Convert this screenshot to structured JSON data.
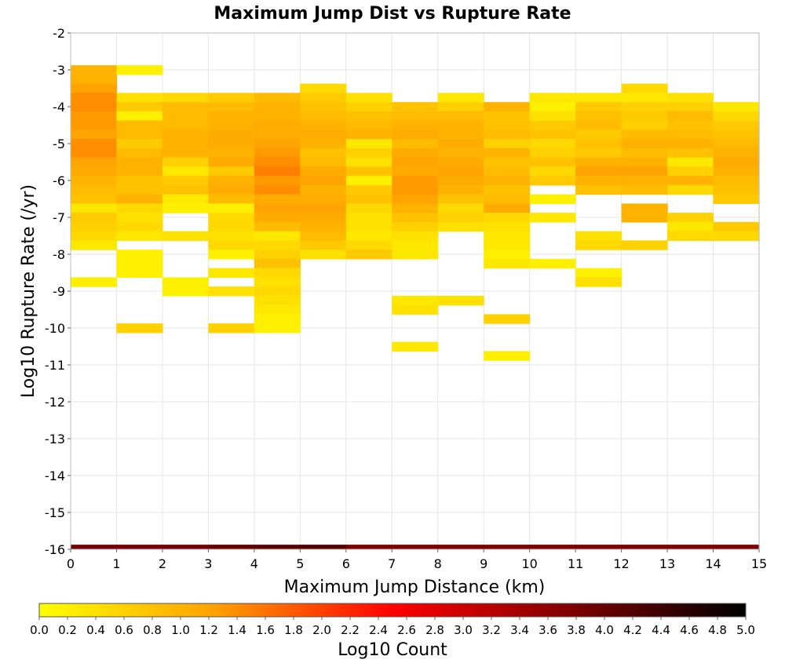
{
  "chart_data": {
    "type": "heatmap",
    "title": "Maximum Jump Dist vs Rupture Rate",
    "xlabel": "Maximum Jump Distance (km)",
    "ylabel": "Log10 Rupture Rate (/yr)",
    "xlim": [
      0,
      15
    ],
    "ylim": [
      -16,
      -2
    ],
    "x_ticks": [
      "0",
      "1",
      "2",
      "3",
      "4",
      "5",
      "6",
      "7",
      "8",
      "9",
      "10",
      "11",
      "12",
      "13",
      "14",
      "15"
    ],
    "y_ticks": [
      "-2",
      "-3",
      "-4",
      "-5",
      "-6",
      "-7",
      "-8",
      "-9",
      "-10",
      "-11",
      "-12",
      "-13",
      "-14",
      "-15",
      "-16"
    ],
    "grid": true,
    "x_bin_width": 1,
    "y_bin_height": 0.25,
    "colorbar": {
      "label": "Log10 Count",
      "range": [
        0,
        5
      ],
      "ticks": [
        "0.0",
        "0.2",
        "0.4",
        "0.6",
        "0.8",
        "1.0",
        "1.2",
        "1.4",
        "1.6",
        "1.8",
        "2.0",
        "2.2",
        "2.4",
        "2.6",
        "2.8",
        "3.0",
        "3.2",
        "3.4",
        "3.6",
        "3.8",
        "4.0",
        "4.2",
        "4.4",
        "4.6",
        "4.8",
        "5.0"
      ],
      "colors": [
        "#ffff00",
        "#ffa000",
        "#ff0000",
        "#800000",
        "#000000"
      ]
    },
    "columns": [
      {
        "x": 0,
        "bins": [
          [
            -3.0,
            1.0
          ],
          [
            -3.25,
            1.0
          ],
          [
            -3.5,
            1.2
          ],
          [
            -3.75,
            1.4
          ],
          [
            -4.0,
            1.4
          ],
          [
            -4.25,
            1.3
          ],
          [
            -4.5,
            1.3
          ],
          [
            -4.75,
            1.2
          ],
          [
            -5.0,
            1.4
          ],
          [
            -5.25,
            1.4
          ],
          [
            -5.5,
            1.2
          ],
          [
            -5.75,
            1.1
          ],
          [
            -6.0,
            1.0
          ],
          [
            -6.25,
            0.9
          ],
          [
            -6.5,
            0.8
          ],
          [
            -6.75,
            0.3
          ],
          [
            -7.0,
            0.7
          ],
          [
            -7.25,
            0.6
          ],
          [
            -7.5,
            0.5
          ],
          [
            -7.75,
            0.3
          ],
          [
            -8.75,
            0.2
          ]
        ]
      },
      {
        "x": 1,
        "bins": [
          [
            -3.0,
            0.2
          ],
          [
            -3.75,
            0.4
          ],
          [
            -4.0,
            0.7
          ],
          [
            -4.25,
            0.2
          ],
          [
            -4.5,
            0.9
          ],
          [
            -4.75,
            0.9
          ],
          [
            -5.0,
            0.7
          ],
          [
            -5.25,
            0.9
          ],
          [
            -5.5,
            1.0
          ],
          [
            -5.75,
            1.0
          ],
          [
            -6.0,
            0.8
          ],
          [
            -6.25,
            0.8
          ],
          [
            -6.5,
            1.0
          ],
          [
            -6.75,
            0.5
          ],
          [
            -7.0,
            0.4
          ],
          [
            -7.25,
            0.5
          ],
          [
            -7.5,
            0.3
          ],
          [
            -8.0,
            0.2
          ],
          [
            -8.25,
            0.2
          ],
          [
            -8.5,
            0.2
          ],
          [
            -10.0,
            0.6
          ]
        ]
      },
      {
        "x": 2,
        "bins": [
          [
            -3.75,
            0.5
          ],
          [
            -4.0,
            0.9
          ],
          [
            -4.25,
            0.9
          ],
          [
            -4.5,
            0.9
          ],
          [
            -4.75,
            1.0
          ],
          [
            -5.0,
            1.0
          ],
          [
            -5.25,
            1.0
          ],
          [
            -5.5,
            0.6
          ],
          [
            -5.75,
            0.3
          ],
          [
            -6.0,
            0.7
          ],
          [
            -6.25,
            0.8
          ],
          [
            -6.5,
            0.3
          ],
          [
            -6.75,
            0.2
          ],
          [
            -7.5,
            0.4
          ],
          [
            -8.75,
            0.2
          ],
          [
            -9.0,
            0.2
          ]
        ]
      },
      {
        "x": 3,
        "bins": [
          [
            -3.75,
            0.7
          ],
          [
            -4.0,
            0.9
          ],
          [
            -4.25,
            1.0
          ],
          [
            -4.5,
            1.0
          ],
          [
            -4.75,
            1.1
          ],
          [
            -5.0,
            1.1
          ],
          [
            -5.25,
            1.0
          ],
          [
            -5.5,
            1.1
          ],
          [
            -5.75,
            0.7
          ],
          [
            -6.0,
            1.0
          ],
          [
            -6.25,
            1.1
          ],
          [
            -6.5,
            0.9
          ],
          [
            -6.75,
            0.2
          ],
          [
            -7.0,
            0.5
          ],
          [
            -7.25,
            0.5
          ],
          [
            -7.5,
            0.4
          ],
          [
            -7.75,
            0.5
          ],
          [
            -8.0,
            0.2
          ],
          [
            -8.5,
            0.3
          ],
          [
            -9.0,
            0.4
          ],
          [
            -10.0,
            0.6
          ]
        ]
      },
      {
        "x": 4,
        "bins": [
          [
            -3.75,
            0.9
          ],
          [
            -4.0,
            1.0
          ],
          [
            -4.25,
            1.0
          ],
          [
            -4.5,
            1.1
          ],
          [
            -4.75,
            1.1
          ],
          [
            -5.0,
            1.2
          ],
          [
            -5.25,
            1.3
          ],
          [
            -5.5,
            1.4
          ],
          [
            -5.75,
            1.5
          ],
          [
            -6.0,
            1.3
          ],
          [
            -6.25,
            1.4
          ],
          [
            -6.5,
            1.1
          ],
          [
            -6.75,
            1.2
          ],
          [
            -7.0,
            1.1
          ],
          [
            -7.25,
            0.9
          ],
          [
            -7.5,
            0.3
          ],
          [
            -7.75,
            0.5
          ],
          [
            -8.0,
            0.6
          ],
          [
            -8.25,
            0.8
          ],
          [
            -8.5,
            0.5
          ],
          [
            -8.75,
            0.4
          ],
          [
            -9.0,
            0.5
          ],
          [
            -9.25,
            0.4
          ],
          [
            -9.5,
            0.3
          ],
          [
            -9.75,
            0.2
          ],
          [
            -10.0,
            0.2
          ]
        ]
      },
      {
        "x": 5,
        "bins": [
          [
            -3.5,
            0.5
          ],
          [
            -3.75,
            0.7
          ],
          [
            -4.0,
            0.8
          ],
          [
            -4.25,
            0.9
          ],
          [
            -4.5,
            1.0
          ],
          [
            -4.75,
            1.1
          ],
          [
            -5.0,
            1.0
          ],
          [
            -5.25,
            0.8
          ],
          [
            -5.5,
            0.9
          ],
          [
            -5.75,
            1.1
          ],
          [
            -6.0,
            1.2
          ],
          [
            -6.25,
            1.0
          ],
          [
            -6.5,
            1.1
          ],
          [
            -6.75,
            1.2
          ],
          [
            -7.0,
            1.1
          ],
          [
            -7.25,
            1.0
          ],
          [
            -7.5,
            0.9
          ],
          [
            -7.75,
            0.7
          ],
          [
            -8.0,
            0.4
          ]
        ]
      },
      {
        "x": 6,
        "bins": [
          [
            -3.75,
            0.4
          ],
          [
            -4.0,
            0.6
          ],
          [
            -4.25,
            0.8
          ],
          [
            -4.5,
            0.9
          ],
          [
            -4.75,
            1.0
          ],
          [
            -5.0,
            0.3
          ],
          [
            -5.25,
            0.6
          ],
          [
            -5.5,
            0.4
          ],
          [
            -5.75,
            0.8
          ],
          [
            -6.0,
            0.2
          ],
          [
            -6.25,
            0.7
          ],
          [
            -6.5,
            0.8
          ],
          [
            -6.75,
            0.5
          ],
          [
            -7.0,
            0.4
          ],
          [
            -7.25,
            0.4
          ],
          [
            -7.5,
            0.3
          ],
          [
            -7.75,
            0.5
          ],
          [
            -8.0,
            0.7
          ]
        ]
      },
      {
        "x": 7,
        "bins": [
          [
            -4.0,
            0.8
          ],
          [
            -4.25,
            0.9
          ],
          [
            -4.5,
            1.0
          ],
          [
            -4.75,
            1.1
          ],
          [
            -5.0,
            0.9
          ],
          [
            -5.25,
            1.1
          ],
          [
            -5.5,
            1.2
          ],
          [
            -5.75,
            1.1
          ],
          [
            -6.0,
            1.3
          ],
          [
            -6.25,
            1.3
          ],
          [
            -6.5,
            1.2
          ],
          [
            -6.75,
            1.0
          ],
          [
            -7.0,
            0.8
          ],
          [
            -7.25,
            0.6
          ],
          [
            -7.5,
            0.4
          ],
          [
            -7.75,
            0.3
          ],
          [
            -8.0,
            0.3
          ],
          [
            -9.25,
            0.3
          ],
          [
            -9.5,
            0.4
          ],
          [
            -10.5,
            0.3
          ]
        ]
      },
      {
        "x": 8,
        "bins": [
          [
            -3.75,
            0.3
          ],
          [
            -4.0,
            0.6
          ],
          [
            -4.25,
            0.9
          ],
          [
            -4.5,
            1.0
          ],
          [
            -4.75,
            1.0
          ],
          [
            -5.0,
            1.1
          ],
          [
            -5.25,
            1.0
          ],
          [
            -5.5,
            1.1
          ],
          [
            -5.75,
            1.2
          ],
          [
            -6.0,
            1.1
          ],
          [
            -6.25,
            1.0
          ],
          [
            -6.5,
            0.8
          ],
          [
            -6.75,
            0.5
          ],
          [
            -7.0,
            0.6
          ],
          [
            -7.25,
            0.4
          ],
          [
            -9.25,
            0.4
          ]
        ]
      },
      {
        "x": 9,
        "bins": [
          [
            -4.0,
            1.0
          ],
          [
            -4.25,
            0.8
          ],
          [
            -4.5,
            0.8
          ],
          [
            -4.75,
            0.9
          ],
          [
            -5.0,
            0.6
          ],
          [
            -5.25,
            1.0
          ],
          [
            -5.5,
            0.8
          ],
          [
            -5.75,
            0.9
          ],
          [
            -6.0,
            1.0
          ],
          [
            -6.25,
            0.8
          ],
          [
            -6.5,
            0.9
          ],
          [
            -6.75,
            1.1
          ],
          [
            -7.0,
            0.5
          ],
          [
            -7.25,
            0.4
          ],
          [
            -7.5,
            0.3
          ],
          [
            -7.75,
            0.3
          ],
          [
            -8.0,
            0.2
          ],
          [
            -8.25,
            0.3
          ],
          [
            -9.75,
            0.6
          ],
          [
            -10.75,
            0.2
          ]
        ]
      },
      {
        "x": 10,
        "bins": [
          [
            -3.75,
            0.3
          ],
          [
            -4.0,
            0.2
          ],
          [
            -4.25,
            0.4
          ],
          [
            -4.5,
            0.7
          ],
          [
            -4.75,
            0.8
          ],
          [
            -5.0,
            0.5
          ],
          [
            -5.25,
            0.6
          ],
          [
            -5.5,
            0.8
          ],
          [
            -5.75,
            0.5
          ],
          [
            -6.0,
            0.7
          ],
          [
            -6.5,
            0.2
          ],
          [
            -7.0,
            0.3
          ],
          [
            -8.25,
            0.2
          ]
        ]
      },
      {
        "x": 11,
        "bins": [
          [
            -3.75,
            0.3
          ],
          [
            -4.0,
            0.7
          ],
          [
            -4.25,
            0.8
          ],
          [
            -4.5,
            0.9
          ],
          [
            -4.75,
            0.7
          ],
          [
            -5.0,
            0.8
          ],
          [
            -5.25,
            0.7
          ],
          [
            -5.5,
            1.0
          ],
          [
            -5.75,
            1.2
          ],
          [
            -6.0,
            1.0
          ],
          [
            -6.25,
            0.8
          ],
          [
            -7.5,
            0.4
          ],
          [
            -7.75,
            0.5
          ],
          [
            -8.5,
            0.2
          ],
          [
            -8.75,
            0.4
          ]
        ]
      },
      {
        "x": 12,
        "bins": [
          [
            -3.5,
            0.5
          ],
          [
            -3.75,
            0.3
          ],
          [
            -4.0,
            0.6
          ],
          [
            -4.25,
            0.7
          ],
          [
            -4.5,
            0.6
          ],
          [
            -4.75,
            0.9
          ],
          [
            -5.0,
            1.0
          ],
          [
            -5.25,
            0.9
          ],
          [
            -5.5,
            1.0
          ],
          [
            -5.75,
            1.2
          ],
          [
            -6.0,
            1.0
          ],
          [
            -6.25,
            0.9
          ],
          [
            -6.75,
            1.0
          ],
          [
            -7.0,
            1.0
          ],
          [
            -7.75,
            0.6
          ]
        ]
      },
      {
        "x": 13,
        "bins": [
          [
            -3.75,
            0.4
          ],
          [
            -4.0,
            0.6
          ],
          [
            -4.25,
            0.9
          ],
          [
            -4.5,
            0.8
          ],
          [
            -4.75,
            0.9
          ],
          [
            -5.0,
            1.0
          ],
          [
            -5.25,
            0.8
          ],
          [
            -5.5,
            0.3
          ],
          [
            -5.75,
            0.6
          ],
          [
            -6.0,
            1.0
          ],
          [
            -6.25,
            0.5
          ],
          [
            -7.0,
            0.6
          ],
          [
            -7.25,
            0.3
          ],
          [
            -7.5,
            0.5
          ]
        ]
      },
      {
        "x": 14,
        "bins": [
          [
            -4.0,
            0.3
          ],
          [
            -4.25,
            0.5
          ],
          [
            -4.5,
            0.7
          ],
          [
            -4.75,
            0.8
          ],
          [
            -5.0,
            0.9
          ],
          [
            -5.25,
            1.0
          ],
          [
            -5.5,
            1.1
          ],
          [
            -5.75,
            1.0
          ],
          [
            -6.0,
            0.9
          ],
          [
            -6.25,
            0.8
          ],
          [
            -6.5,
            0.7
          ],
          [
            -7.25,
            0.7
          ],
          [
            -7.5,
            0.5
          ]
        ]
      }
    ],
    "bottom_row": {
      "y": -16,
      "values": [
        3.9,
        3.9,
        3.9,
        4.0,
        4.1,
        4.2,
        3.8,
        3.8,
        3.8,
        3.8,
        3.8,
        3.8,
        3.8,
        3.8,
        3.8
      ]
    }
  }
}
